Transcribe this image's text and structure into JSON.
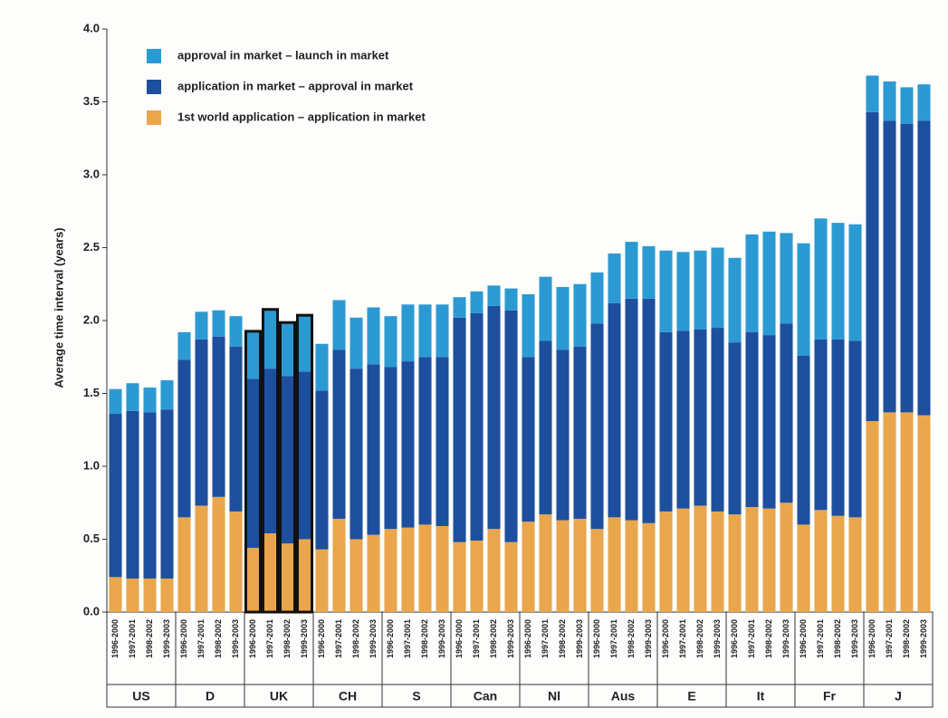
{
  "chart_data": {
    "type": "stacked_bar",
    "ylabel": "Average time interval (years)",
    "categories": [
      "1996-2000",
      "1997-2001",
      "1998-2002",
      "1999-2003",
      "1996-2000",
      "1997-2001",
      "1998-2002",
      "1999-2003",
      "1996-2000",
      "1997-2001",
      "1998-2002",
      "1999-2003",
      "1996-2000",
      "1997-2001",
      "1998-2002",
      "1999-2003",
      "1996-2000",
      "1997-2001",
      "1998-2002",
      "1999-2003",
      "1996-2000",
      "1997-2001",
      "1998-2002",
      "1999-2003",
      "1996-2000",
      "1997-2001",
      "1998-2002",
      "1999-2003",
      "1996-2000",
      "1997-2001",
      "1998-2002",
      "1999-2003",
      "1996-2000",
      "1997-2001",
      "1998-2002",
      "1999-2003",
      "1996-2000",
      "1997-2001",
      "1998-2002",
      "1999-2003",
      "1996-2000",
      "1997-2001",
      "1998-2002",
      "1999-2003",
      "1996-2000",
      "1997-2001",
      "1998-2002",
      "1999-2003"
    ],
    "groups": [
      "US",
      "D",
      "UK",
      "CH",
      "S",
      "Can",
      "Nl",
      "Aus",
      "E",
      "It",
      "Fr",
      "J"
    ],
    "highlight": "UK",
    "series": [
      {
        "name": "1st world application – application in market",
        "color": "#e9a64c",
        "values": [
          0.24,
          0.23,
          0.23,
          0.23,
          0.65,
          0.73,
          0.79,
          0.69,
          0.44,
          0.54,
          0.47,
          0.5,
          0.43,
          0.64,
          0.5,
          0.53,
          0.57,
          0.58,
          0.6,
          0.59,
          0.48,
          0.49,
          0.57,
          0.48,
          0.62,
          0.67,
          0.63,
          0.64,
          0.57,
          0.65,
          0.63,
          0.61,
          0.69,
          0.71,
          0.73,
          0.69,
          0.67,
          0.72,
          0.71,
          0.75,
          0.6,
          0.7,
          0.66,
          0.65,
          1.31,
          1.37,
          1.37,
          1.35
        ]
      },
      {
        "name": "application in market – approval in market",
        "color": "#1d4f9e",
        "values": [
          1.12,
          1.15,
          1.14,
          1.16,
          1.08,
          1.14,
          1.1,
          1.13,
          1.16,
          1.13,
          1.15,
          1.15,
          1.09,
          1.16,
          1.17,
          1.17,
          1.11,
          1.14,
          1.15,
          1.16,
          1.54,
          1.56,
          1.53,
          1.59,
          1.13,
          1.19,
          1.17,
          1.18,
          1.41,
          1.47,
          1.52,
          1.54,
          1.23,
          1.22,
          1.21,
          1.26,
          1.18,
          1.2,
          1.19,
          1.23,
          1.16,
          1.17,
          1.21,
          1.21,
          2.12,
          2.0,
          1.98,
          2.02
        ]
      },
      {
        "name": "approval in market – launch in market",
        "color": "#2c9ad2",
        "values": [
          0.17,
          0.19,
          0.17,
          0.2,
          0.19,
          0.19,
          0.18,
          0.21,
          0.32,
          0.4,
          0.36,
          0.38,
          0.32,
          0.34,
          0.35,
          0.39,
          0.35,
          0.39,
          0.36,
          0.36,
          0.14,
          0.15,
          0.14,
          0.15,
          0.43,
          0.44,
          0.43,
          0.43,
          0.35,
          0.34,
          0.39,
          0.36,
          0.56,
          0.54,
          0.54,
          0.55,
          0.58,
          0.67,
          0.71,
          0.62,
          0.77,
          0.83,
          0.8,
          0.8,
          0.25,
          0.27,
          0.25,
          0.25
        ]
      }
    ],
    "ylim": [
      0,
      4
    ],
    "yticks": [
      {
        "value": 0,
        "label": "0.0"
      },
      0.5,
      {
        "value": 1,
        "label": "1.0"
      },
      1.5,
      {
        "value": 2,
        "label": "2.0"
      },
      2.5,
      {
        "value": 3,
        "label": "3.0"
      },
      3.5,
      {
        "value": 4,
        "label": "4.0"
      }
    ]
  }
}
